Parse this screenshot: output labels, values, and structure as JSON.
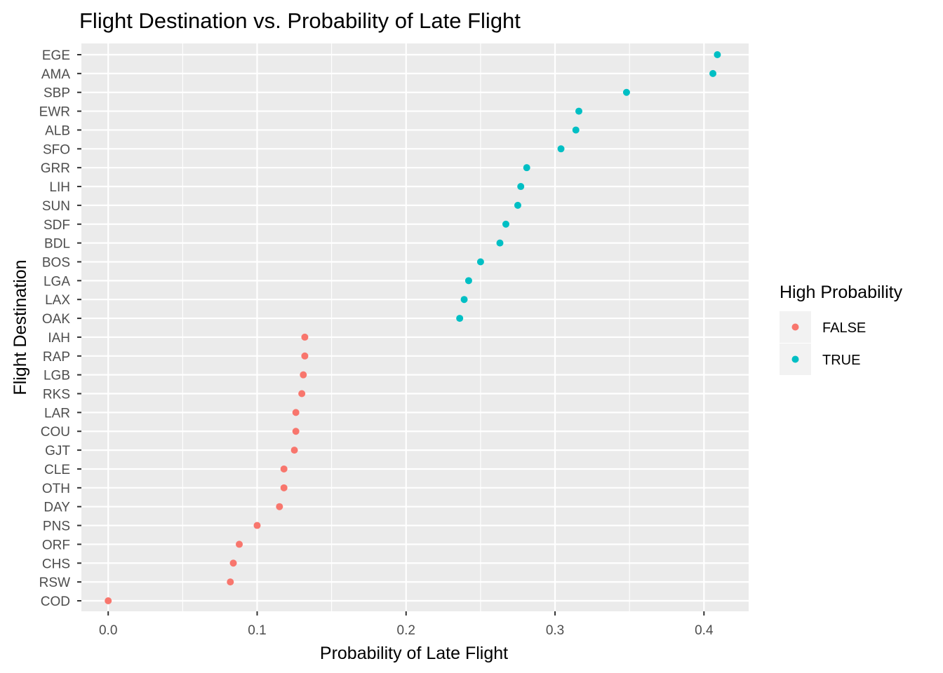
{
  "chart_data": {
    "type": "scatter",
    "title": "Flight Destination vs. Probability of Late Flight",
    "xlabel": "Probability of Late Flight",
    "ylabel": "Flight Destination",
    "xlim": [
      -0.018,
      0.43
    ],
    "x_ticks": [
      "0.0",
      "0.1",
      "0.2",
      "0.3",
      "0.4"
    ],
    "x_tick_values": [
      0.0,
      0.1,
      0.2,
      0.3,
      0.4
    ],
    "grid": true,
    "legend": {
      "title": "High Probability",
      "placement": "right",
      "entries": [
        {
          "label": "FALSE",
          "color": "#F8766D"
        },
        {
          "label": "TRUE",
          "color": "#00BFC4"
        }
      ]
    },
    "categories": [
      "EGE",
      "AMA",
      "SBP",
      "EWR",
      "ALB",
      "SFO",
      "GRR",
      "LIH",
      "SUN",
      "SDF",
      "BDL",
      "BOS",
      "LGA",
      "LAX",
      "OAK",
      "IAH",
      "RAP",
      "LGB",
      "RKS",
      "LAR",
      "COU",
      "GJT",
      "CLE",
      "OTH",
      "DAY",
      "PNS",
      "ORF",
      "CHS",
      "RSW",
      "COD"
    ],
    "points": [
      {
        "dest": "EGE",
        "x": 0.409,
        "high": "TRUE"
      },
      {
        "dest": "AMA",
        "x": 0.406,
        "high": "TRUE"
      },
      {
        "dest": "SBP",
        "x": 0.348,
        "high": "TRUE"
      },
      {
        "dest": "EWR",
        "x": 0.316,
        "high": "TRUE"
      },
      {
        "dest": "ALB",
        "x": 0.314,
        "high": "TRUE"
      },
      {
        "dest": "SFO",
        "x": 0.304,
        "high": "TRUE"
      },
      {
        "dest": "GRR",
        "x": 0.281,
        "high": "TRUE"
      },
      {
        "dest": "LIH",
        "x": 0.277,
        "high": "TRUE"
      },
      {
        "dest": "SUN",
        "x": 0.275,
        "high": "TRUE"
      },
      {
        "dest": "SDF",
        "x": 0.267,
        "high": "TRUE"
      },
      {
        "dest": "BDL",
        "x": 0.263,
        "high": "TRUE"
      },
      {
        "dest": "BOS",
        "x": 0.25,
        "high": "TRUE"
      },
      {
        "dest": "LGA",
        "x": 0.242,
        "high": "TRUE"
      },
      {
        "dest": "LAX",
        "x": 0.239,
        "high": "TRUE"
      },
      {
        "dest": "OAK",
        "x": 0.236,
        "high": "TRUE"
      },
      {
        "dest": "IAH",
        "x": 0.132,
        "high": "FALSE"
      },
      {
        "dest": "RAP",
        "x": 0.132,
        "high": "FALSE"
      },
      {
        "dest": "LGB",
        "x": 0.131,
        "high": "FALSE"
      },
      {
        "dest": "RKS",
        "x": 0.13,
        "high": "FALSE"
      },
      {
        "dest": "LAR",
        "x": 0.126,
        "high": "FALSE"
      },
      {
        "dest": "COU",
        "x": 0.126,
        "high": "FALSE"
      },
      {
        "dest": "GJT",
        "x": 0.125,
        "high": "FALSE"
      },
      {
        "dest": "CLE",
        "x": 0.118,
        "high": "FALSE"
      },
      {
        "dest": "OTH",
        "x": 0.118,
        "high": "FALSE"
      },
      {
        "dest": "DAY",
        "x": 0.115,
        "high": "FALSE"
      },
      {
        "dest": "PNS",
        "x": 0.1,
        "high": "FALSE"
      },
      {
        "dest": "ORF",
        "x": 0.088,
        "high": "FALSE"
      },
      {
        "dest": "CHS",
        "x": 0.084,
        "high": "FALSE"
      },
      {
        "dest": "RSW",
        "x": 0.082,
        "high": "FALSE"
      },
      {
        "dest": "COD",
        "x": 0.0,
        "high": "FALSE"
      }
    ]
  }
}
